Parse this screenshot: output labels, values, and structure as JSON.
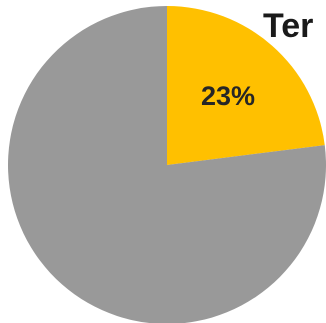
{
  "chart_data": {
    "type": "pie",
    "title": "Ter",
    "slices": [
      {
        "label": "23%",
        "value": 23,
        "color": "#ffc000"
      },
      {
        "label": "",
        "value": 77,
        "color": "#999999"
      }
    ],
    "start_angle_deg": 0,
    "direction": "clockwise"
  }
}
